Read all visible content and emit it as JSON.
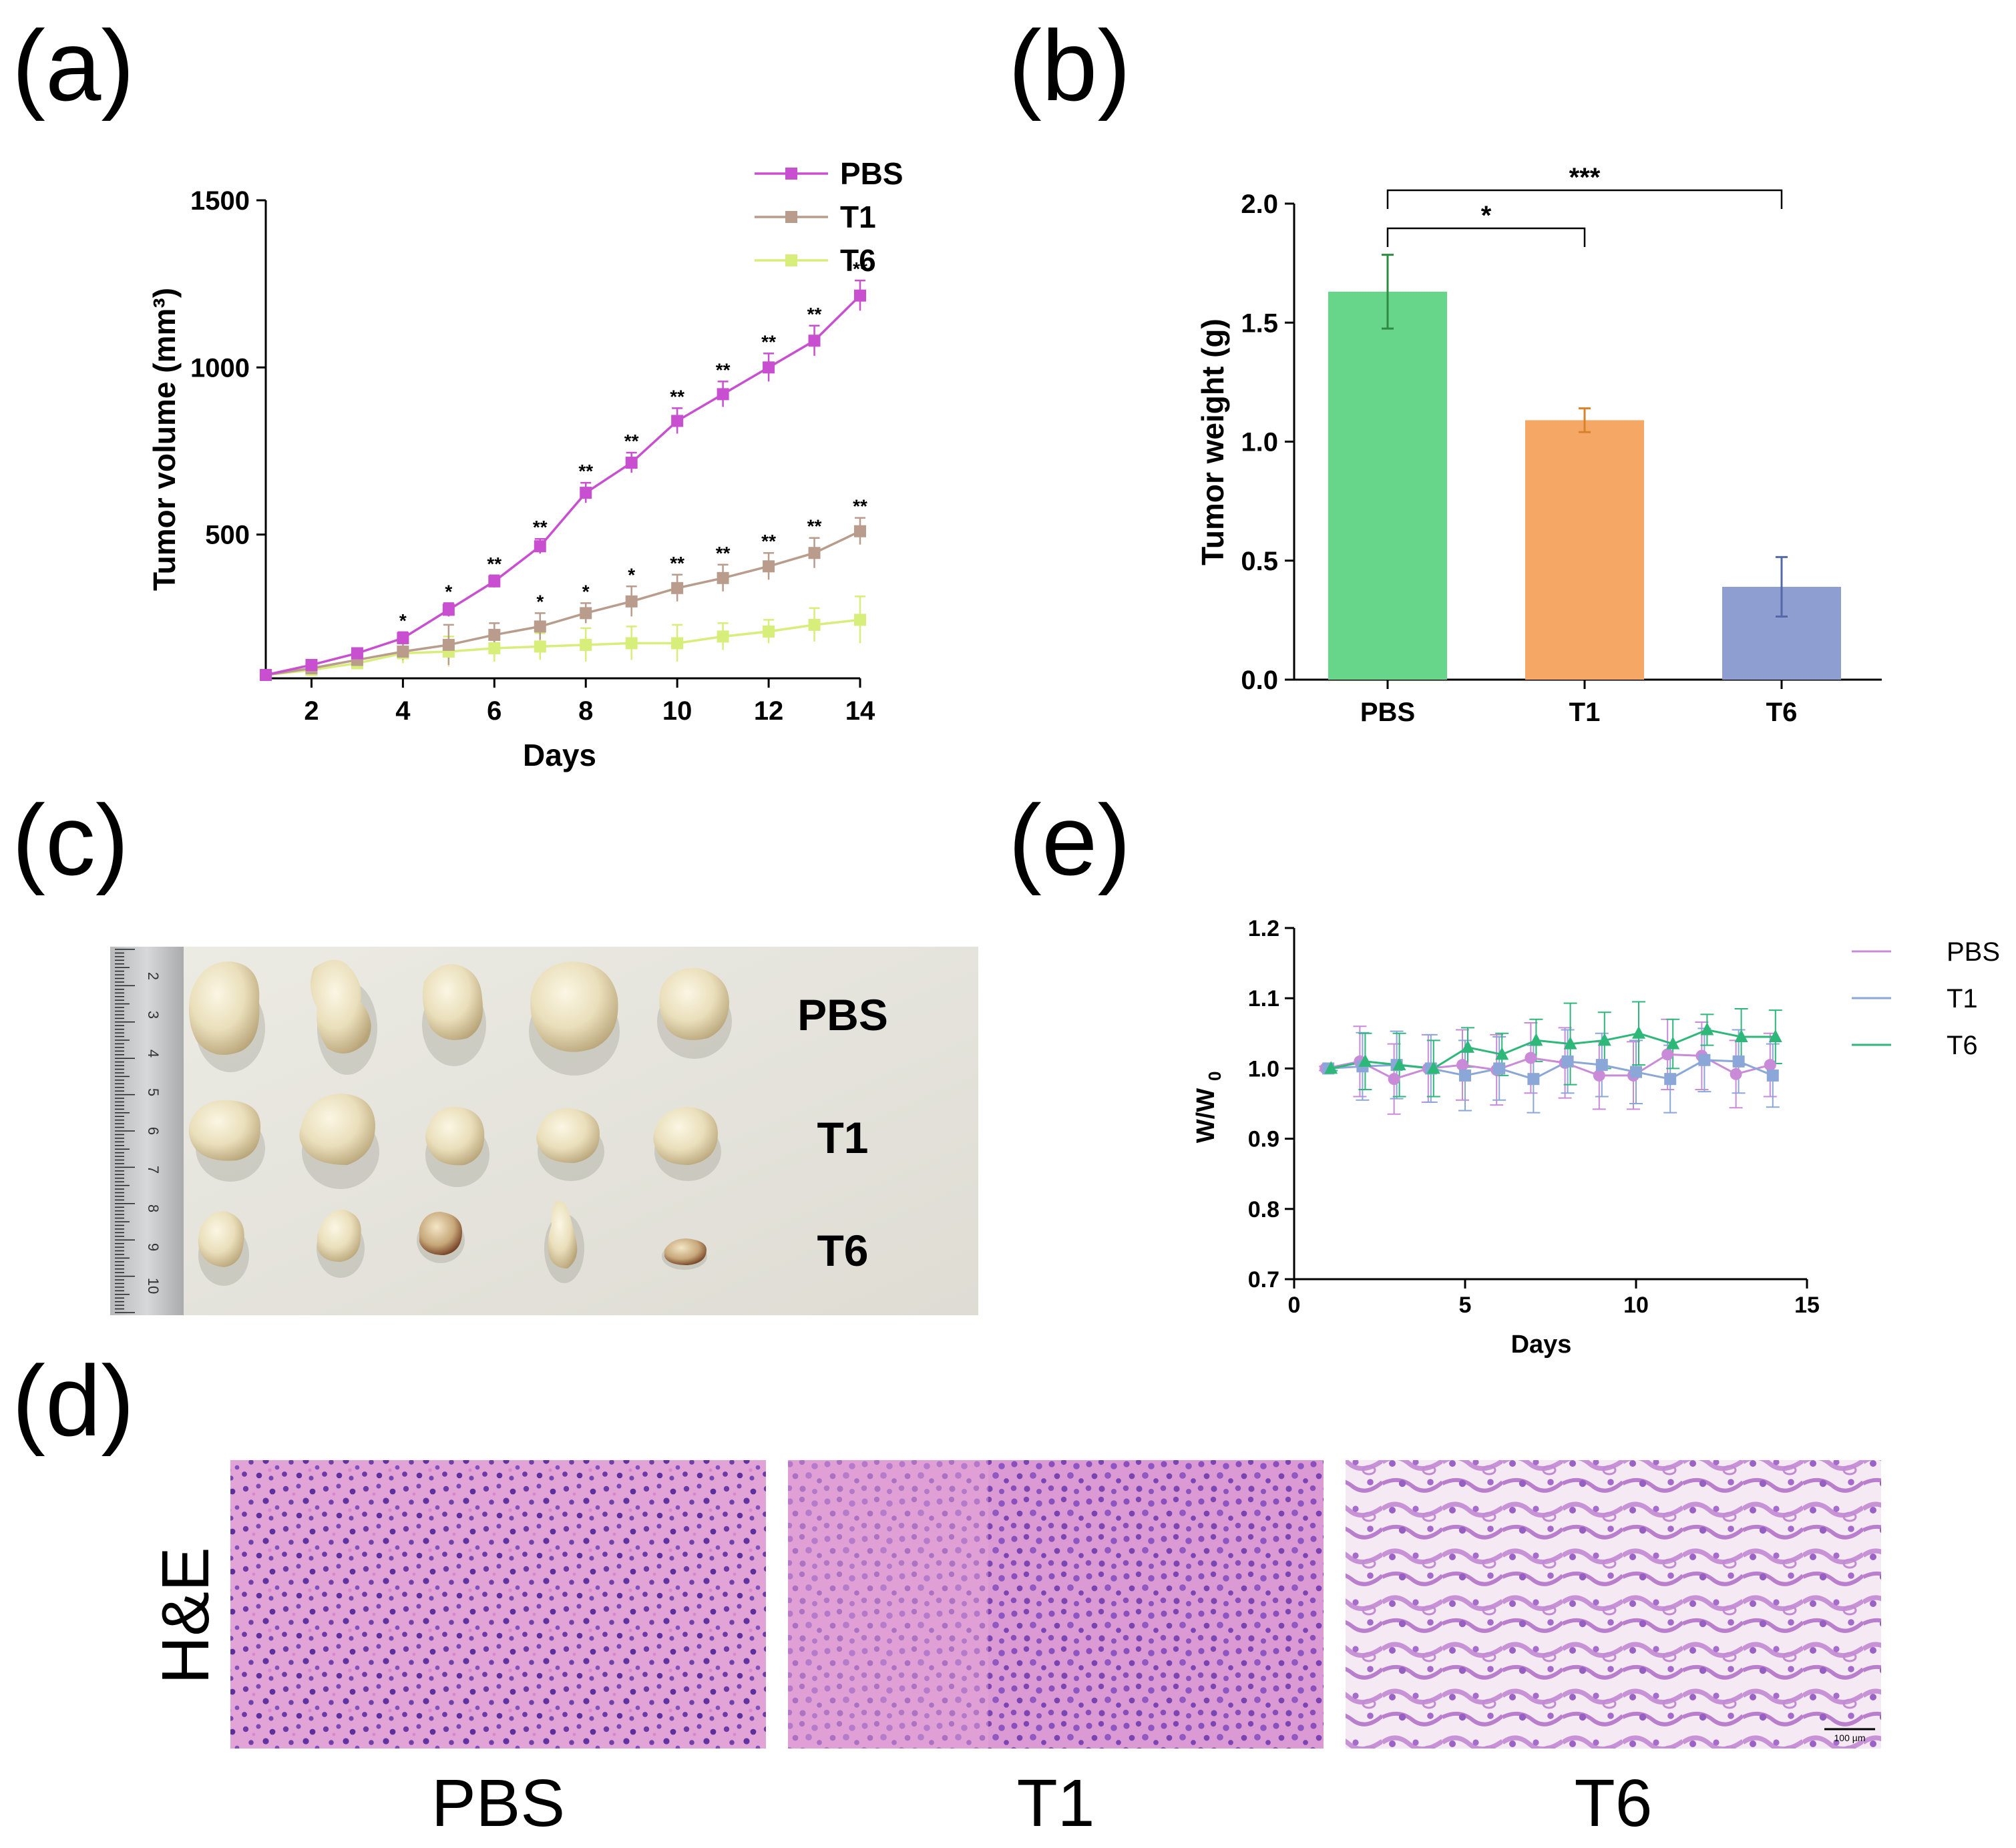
{
  "panels": {
    "a": "(a)",
    "b": "(b)",
    "c": "(c)",
    "d": "(d)",
    "e": "(e)"
  },
  "colors": {
    "PBS": "#C84FD0",
    "T1": "#B99C8C",
    "T6": "#D7EE7A",
    "bar_PBS": "#68D68A",
    "bar_T1": "#F5A866",
    "bar_T6": "#8E9ED0",
    "err_PBS": "#2E8B40",
    "err_T1": "#D9822B",
    "err_T6": "#5568A8",
    "e_PBS": "#C98BD8",
    "e_T1": "#8AA7D8",
    "e_T6": "#2DB87A"
  },
  "chart_data": [
    {
      "id": "a",
      "type": "line",
      "xlabel": "Days",
      "ylabel": "Tumor volume (mm³)",
      "xlim": [
        1,
        14
      ],
      "ylim": [
        70,
        1500
      ],
      "xticks": [
        2,
        4,
        6,
        8,
        10,
        12,
        14
      ],
      "yticks": [
        500,
        1000,
        1500
      ],
      "x": [
        1,
        2,
        3,
        4,
        5,
        6,
        7,
        8,
        9,
        10,
        11,
        12,
        13,
        14
      ],
      "series": [
        {
          "name": "PBS",
          "values": [
            80,
            110,
            145,
            190,
            275,
            360,
            465,
            625,
            715,
            840,
            920,
            1000,
            1080,
            1215
          ],
          "errors": [
            10,
            15,
            15,
            18,
            20,
            18,
            22,
            30,
            30,
            38,
            38,
            42,
            45,
            45
          ]
        },
        {
          "name": "T1",
          "values": [
            80,
            100,
            125,
            150,
            170,
            200,
            225,
            265,
            300,
            340,
            370,
            405,
            445,
            510
          ],
          "errors": [
            10,
            15,
            18,
            25,
            60,
            35,
            40,
            30,
            45,
            40,
            40,
            40,
            45,
            40
          ]
        },
        {
          "name": "T6",
          "values": [
            80,
            95,
            115,
            145,
            150,
            160,
            165,
            170,
            175,
            175,
            195,
            210,
            230,
            245
          ],
          "errors": [
            10,
            15,
            18,
            30,
            45,
            40,
            40,
            50,
            50,
            55,
            40,
            35,
            50,
            70
          ]
        }
      ],
      "significance": [
        "",
        "",
        "",
        "*",
        "*",
        "**",
        "**",
        "**",
        "**",
        "**",
        "**",
        "**",
        "**",
        "**"
      ],
      "significance_T1": [
        "",
        "",
        "",
        "",
        "",
        "",
        "*",
        "*",
        "*",
        "**",
        "**",
        "**",
        "**",
        "**"
      ]
    },
    {
      "id": "b",
      "type": "bar",
      "ylabel": "Tumor weight (g)",
      "categories": [
        "PBS",
        "T1",
        "T6"
      ],
      "values": [
        1.63,
        1.09,
        0.39
      ],
      "errors": [
        0.155,
        0.05,
        0.125
      ],
      "ylim": [
        0,
        2.0
      ],
      "yticks": [
        "0.0",
        "0.5",
        "1.0",
        "1.5",
        "2.0"
      ],
      "brackets": [
        {
          "from": "PBS",
          "to": "T1",
          "label": "*"
        },
        {
          "from": "PBS",
          "to": "T6",
          "label": "***"
        }
      ]
    },
    {
      "id": "e",
      "type": "line",
      "xlabel": "Days",
      "ylabel": "W/W",
      "ylabel_sub": "0",
      "xlim": [
        0,
        15
      ],
      "ylim": [
        0.7,
        1.2
      ],
      "xticks": [
        "0",
        "5",
        "10",
        "15"
      ],
      "yticks": [
        "0.7",
        "0.8",
        "0.9",
        "1.0",
        "1.1",
        "1.2"
      ],
      "x": [
        1,
        2,
        3,
        4,
        5,
        6,
        7,
        8,
        9,
        10,
        11,
        12,
        13,
        14
      ],
      "series": [
        {
          "name": "PBS",
          "marker": "circle",
          "values": [
            1.0,
            1.01,
            0.985,
            1.0,
            1.005,
            0.998,
            1.015,
            1.008,
            0.99,
            0.99,
            1.02,
            1.018,
            0.992,
            1.005
          ],
          "errors": [
            0.003,
            0.05,
            0.05,
            0.048,
            0.05,
            0.05,
            0.05,
            0.05,
            0.048,
            0.048,
            0.05,
            0.048,
            0.048,
            0.045
          ]
        },
        {
          "name": "T1",
          "marker": "square",
          "values": [
            1.0,
            1.003,
            1.005,
            1.0,
            0.99,
            1.0,
            0.985,
            1.01,
            1.005,
            0.995,
            0.985,
            1.012,
            1.01,
            0.99
          ],
          "errors": [
            0.003,
            0.048,
            0.048,
            0.048,
            0.05,
            0.045,
            0.048,
            0.045,
            0.045,
            0.045,
            0.048,
            0.045,
            0.045,
            0.045
          ]
        },
        {
          "name": "T6",
          "marker": "triangle",
          "values": [
            1.0,
            1.01,
            1.005,
            1.0,
            1.03,
            1.02,
            1.04,
            1.035,
            1.04,
            1.05,
            1.035,
            1.055,
            1.045,
            1.045
          ],
          "errors": [
            0.003,
            0.04,
            0.045,
            0.04,
            0.028,
            0.03,
            0.03,
            0.058,
            0.04,
            0.045,
            0.035,
            0.022,
            0.04,
            0.038
          ]
        }
      ]
    }
  ],
  "photo": {
    "rows": [
      "PBS",
      "T1",
      "T6"
    ],
    "ruler_numbers": [
      "2",
      "3",
      "4",
      "5",
      "6",
      "7",
      "8",
      "9",
      "10"
    ]
  },
  "histology": {
    "stain": "H&E",
    "groups": [
      "PBS",
      "T1",
      "T6"
    ],
    "scale_bar": "100 µm"
  }
}
